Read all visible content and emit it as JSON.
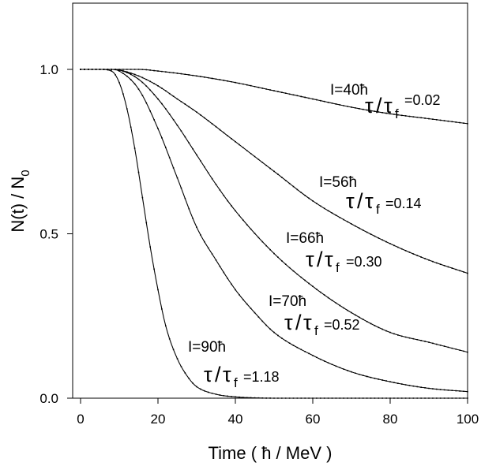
{
  "chart_data": {
    "type": "line",
    "title": "",
    "xlabel_prefix": "Time (",
    "xlabel_unit": "ħ / MeV )",
    "ylabel_main": "N(t) / N",
    "ylabel_sub": "0",
    "xlim": [
      0,
      100
    ],
    "ylim": [
      0,
      1.2
    ],
    "xticks": [
      0,
      20,
      40,
      60,
      80,
      100
    ],
    "yticks": [
      0.0,
      0.5,
      1.0
    ],
    "xtick_labels": [
      "0",
      "20",
      "40",
      "60",
      "80",
      "100"
    ],
    "ytick_labels": [
      "0.0",
      "0.5",
      "1.0"
    ],
    "grid": false,
    "legend": "none",
    "series": [
      {
        "name": "I=40ħ τ/τf=0.02",
        "spin": "I=40ħ",
        "ratio_value": "=0.02",
        "tau_ratio": 0.02,
        "x": [
          0,
          10,
          15,
          20,
          30,
          40,
          50,
          60,
          70,
          80,
          90,
          100
        ],
        "y": [
          1.0,
          1.0,
          1.0,
          0.995,
          0.98,
          0.96,
          0.935,
          0.91,
          0.885,
          0.865,
          0.85,
          0.835
        ]
      },
      {
        "name": "I=56ħ τ/τf=0.14",
        "spin": "I=56ħ",
        "ratio_value": "=0.14",
        "tau_ratio": 0.14,
        "x": [
          0,
          8,
          10,
          15,
          20,
          25,
          30,
          40,
          50,
          60,
          70,
          80,
          90,
          100
        ],
        "y": [
          1.0,
          1.0,
          0.998,
          0.98,
          0.95,
          0.91,
          0.87,
          0.78,
          0.69,
          0.6,
          0.53,
          0.47,
          0.42,
          0.38
        ]
      },
      {
        "name": "I=66ħ τ/τf=0.30",
        "spin": "I=66ħ",
        "ratio_value": "=0.30",
        "tau_ratio": 0.3,
        "x": [
          0,
          8,
          10,
          15,
          20,
          25,
          30,
          35,
          40,
          50,
          60,
          70,
          80,
          90,
          100
        ],
        "y": [
          1.0,
          1.0,
          0.998,
          0.97,
          0.91,
          0.83,
          0.74,
          0.65,
          0.57,
          0.44,
          0.34,
          0.26,
          0.2,
          0.17,
          0.14
        ]
      },
      {
        "name": "I=70ħ τ/τf=0.52",
        "spin": "I=70ħ",
        "ratio_value": "=0.52",
        "tau_ratio": 0.52,
        "x": [
          0,
          8,
          10,
          15,
          20,
          25,
          30,
          35,
          40,
          45,
          50,
          60,
          70,
          80,
          90,
          100
        ],
        "y": [
          1.0,
          1.0,
          0.995,
          0.94,
          0.82,
          0.67,
          0.52,
          0.42,
          0.33,
          0.26,
          0.2,
          0.13,
          0.08,
          0.05,
          0.03,
          0.02
        ]
      },
      {
        "name": "I=90ħ τ/τf=1.18",
        "spin": "I=90ħ",
        "ratio_value": "=1.18",
        "tau_ratio": 1.18,
        "x": [
          0,
          5,
          8,
          10,
          12,
          14,
          16,
          18,
          20,
          22,
          25,
          28,
          30,
          35,
          40,
          45,
          50,
          60,
          70,
          80,
          90,
          100
        ],
        "y": [
          1.0,
          1.0,
          0.995,
          0.96,
          0.88,
          0.76,
          0.61,
          0.46,
          0.33,
          0.22,
          0.12,
          0.06,
          0.035,
          0.012,
          0.004,
          0.001,
          0.0,
          0.0,
          0.0,
          0.0,
          0.0,
          0.0
        ]
      }
    ],
    "annotations": [
      {
        "spin": "I=40ħ",
        "ratio": "=0.02"
      },
      {
        "spin": "I=56ħ",
        "ratio": "=0.14"
      },
      {
        "spin": "I=66ħ",
        "ratio": "=0.30"
      },
      {
        "spin": "I=70ħ",
        "ratio": "=0.52"
      },
      {
        "spin": "I=90ħ",
        "ratio": "=1.18"
      }
    ],
    "tau_symbol": "τ",
    "tau_sub": "f",
    "ratio_slash": "/"
  }
}
